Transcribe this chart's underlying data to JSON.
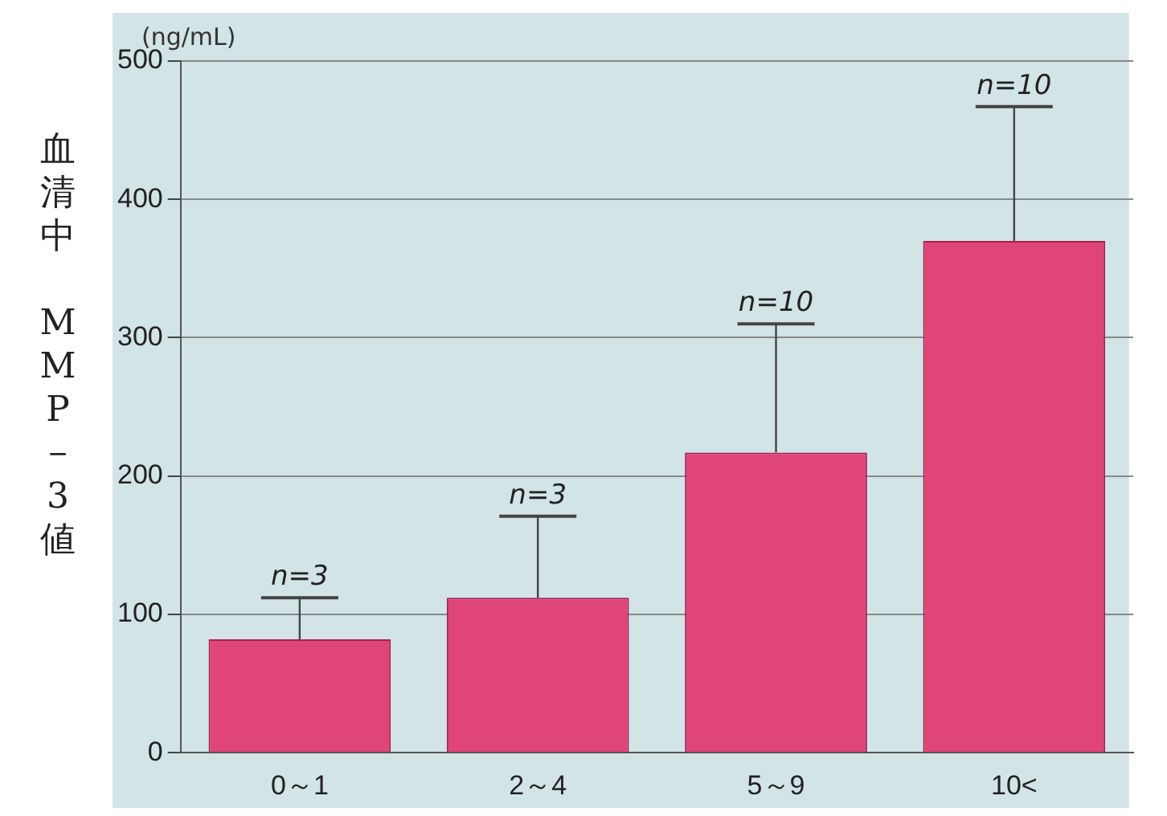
{
  "chart_data": {
    "type": "bar",
    "ylabel": "血清中　MMP－3値",
    "categories": [
      "0～1",
      "2～4",
      "5～9",
      "10<"
    ],
    "values": [
      82,
      112,
      217,
      370
    ],
    "errors": [
      [
        82,
        112
      ],
      [
        112,
        171
      ],
      [
        217,
        310
      ],
      [
        370,
        467
      ]
    ],
    "color": "#e0457a",
    "ylim": [
      0,
      500
    ],
    "yticks": [
      0,
      100,
      200,
      300,
      400,
      500
    ],
    "grid": "y",
    "legend": false,
    "annotations": [
      "(ng/mL)",
      {
        "text": "n=3",
        "x": "0～1",
        "y": 112
      },
      {
        "text": "n=3",
        "x": "2～4",
        "y": 171
      },
      {
        "text": "n=10",
        "x": "5～9",
        "y": 310
      },
      {
        "text": "n=10",
        "x": "10<",
        "y": 467
      }
    ]
  }
}
